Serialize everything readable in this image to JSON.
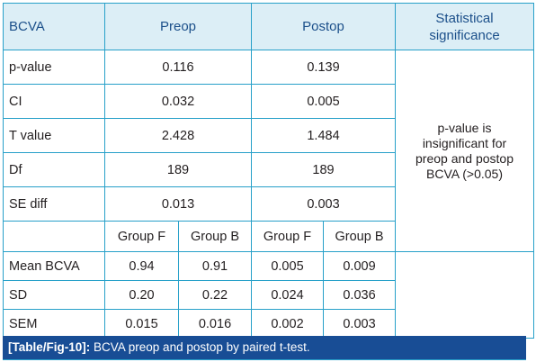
{
  "table": {
    "headers": {
      "label": "BCVA",
      "preop": "Preop",
      "postop": "Postop",
      "significance_line1": "Statistical",
      "significance_line2": "significance"
    },
    "rows": [
      {
        "label": "p-value",
        "preop": "0.116",
        "postop": "0.139"
      },
      {
        "label": "CI",
        "preop": "0.032",
        "postop": "0.005"
      },
      {
        "label": "T value",
        "preop": "2.428",
        "postop": "1.484"
      },
      {
        "label": "Df",
        "preop": "189",
        "postop": "189"
      },
      {
        "label": "SE diff",
        "preop": "0.013",
        "postop": "0.003"
      }
    ],
    "groups": [
      "Group F",
      "Group B",
      "Group F",
      "Group B"
    ],
    "group_rows": [
      {
        "label": "Mean BCVA",
        "values": [
          "0.94",
          "0.91",
          "0.005",
          "0.009"
        ]
      },
      {
        "label": "SD",
        "values": [
          "0.20",
          "0.22",
          "0.024",
          "0.036"
        ]
      },
      {
        "label": "SEM",
        "values": [
          "0.015",
          "0.016",
          "0.002",
          "0.003"
        ]
      }
    ],
    "significance_text": [
      "p-value is",
      "insignificant for",
      "preop and postop",
      "BCVA (>0.05)"
    ]
  },
  "caption": {
    "tag": "[Table/Fig-10]:",
    "text": " BCVA preop and postop by paired t-test."
  },
  "colors": {
    "header_bg": "#dceef6",
    "header_text": "#1b4f8a",
    "border": "#27a0c9",
    "caption_bg": "#184d95"
  }
}
